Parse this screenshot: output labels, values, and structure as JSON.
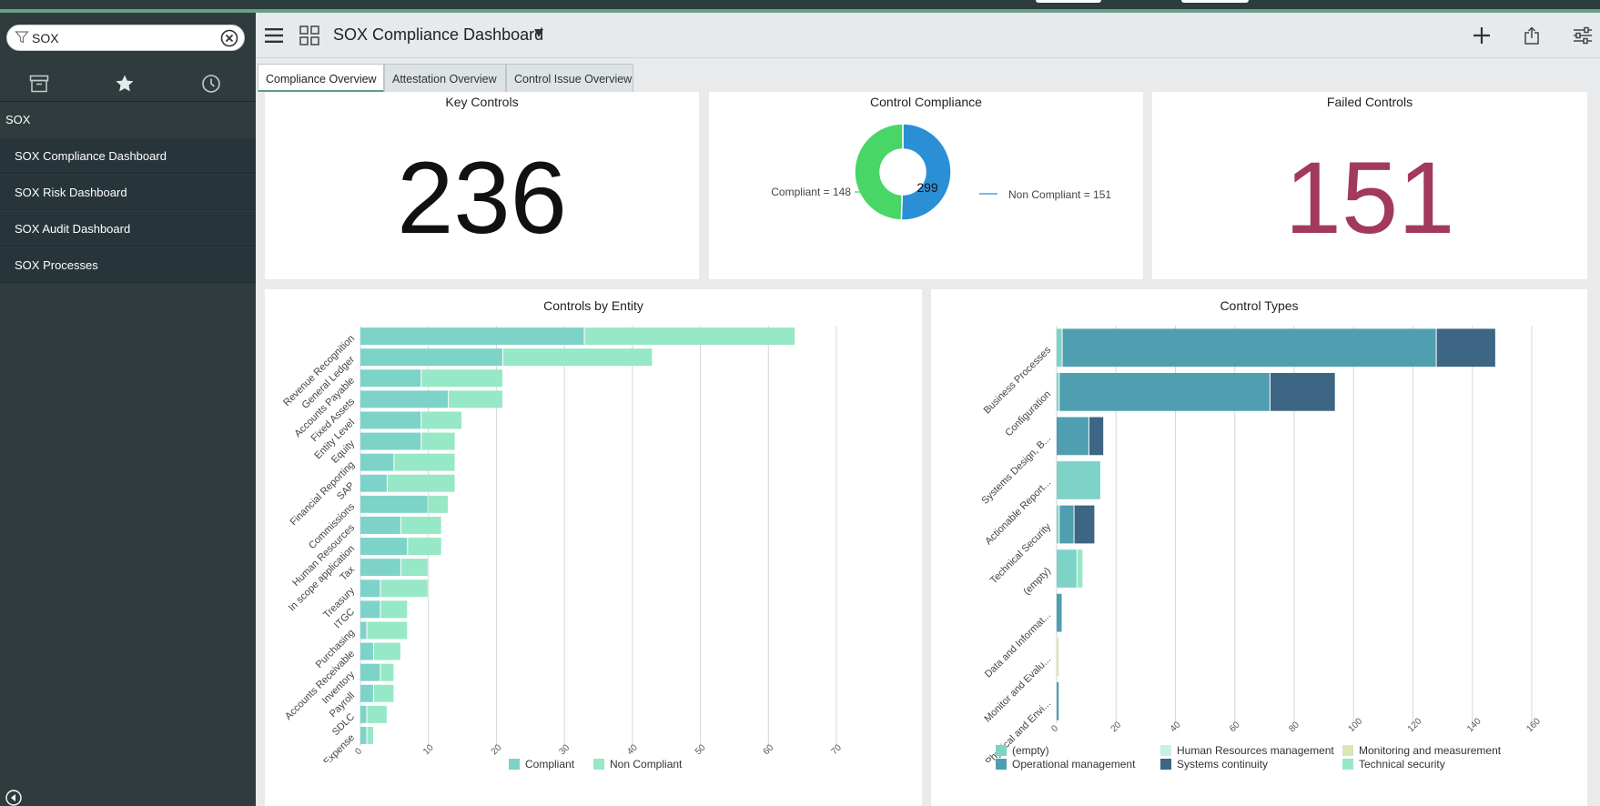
{
  "search": {
    "value": "SOX"
  },
  "sidebar": {
    "section": "SOX",
    "items": [
      {
        "label": "SOX Compliance Dashboard"
      },
      {
        "label": "SOX Risk Dashboard"
      },
      {
        "label": "SOX Audit Dashboard"
      },
      {
        "label": "SOX Processes"
      }
    ]
  },
  "header": {
    "title": "SOX Compliance Dashboard"
  },
  "tabs": [
    {
      "label": "Compliance Overview",
      "active": true
    },
    {
      "label": "Attestation Overview",
      "active": false
    },
    {
      "label": "Control Issue Overview",
      "active": false
    }
  ],
  "key_controls": {
    "title": "Key Controls",
    "value": "236"
  },
  "control_compliance": {
    "title": "Control Compliance",
    "total": "299",
    "compliant_label": "Compliant = 148",
    "non_compliant_label": "Non Compliant = 151",
    "compliant": 148,
    "non_compliant": 151,
    "colors": {
      "compliant": "#48d666",
      "non_compliant": "#2b8fd6"
    }
  },
  "failed_controls": {
    "title": "Failed Controls",
    "value": "151",
    "color": "#a23a5b"
  },
  "colors": {
    "compliant": "#7dd3c8",
    "non_compliant": "#96e8c6",
    "empty": "#7dd3c8",
    "hr_management": "#c9f1e3",
    "monitoring": "#d9e8b4",
    "operational": "#4f9fb1",
    "systems_continuity": "#3c6683",
    "technical_security": "#96e8c6"
  },
  "chart_data": [
    {
      "title": "Controls by Entity",
      "type": "bar",
      "orientation": "horizontal",
      "stacked": true,
      "categories": [
        "Revenue Recognition",
        "General Ledger",
        "Accounts Payable",
        "Fixed Assets",
        "Entity Level",
        "Equity",
        "Financial Reporting",
        "SAP",
        "Commissions",
        "Human Resources",
        "In scope application",
        "Tax",
        "Treasury",
        "ITGC",
        "Purchasing",
        "Accounts Receivable",
        "Inventory",
        "Payroll",
        "SDLC",
        "Travel and Expense"
      ],
      "series": [
        {
          "name": "Compliant",
          "values": [
            33,
            21,
            9,
            13,
            9,
            9,
            5,
            4,
            10,
            6,
            7,
            6,
            3,
            3,
            1,
            2,
            3,
            2,
            1,
            1
          ]
        },
        {
          "name": "Non Compliant",
          "values": [
            31,
            22,
            12,
            8,
            6,
            5,
            9,
            10,
            3,
            6,
            5,
            4,
            7,
            4,
            6,
            4,
            2,
            3,
            3,
            1
          ]
        }
      ],
      "xlim": [
        0,
        70
      ],
      "ticks": [
        "0",
        "10",
        "20",
        "30",
        "40",
        "50",
        "60",
        "70"
      ],
      "grid": true,
      "legend": "bottom"
    },
    {
      "title": "Control Types",
      "type": "bar",
      "orientation": "horizontal",
      "stacked": true,
      "categories": [
        "Business Processes",
        "Configuration",
        "Systems Design, B...",
        "Actionable Report...",
        "Technical Security",
        "(empty)",
        "Data and Informat...",
        "Monitor and Evalu...",
        "Physical and Envi..."
      ],
      "series": [
        {
          "name": "(empty)",
          "values": [
            2,
            1,
            0,
            15,
            1,
            7,
            0,
            0,
            0
          ]
        },
        {
          "name": "Human Resources management",
          "values": [
            0,
            0,
            0,
            0,
            0,
            0,
            0,
            0,
            0
          ]
        },
        {
          "name": "Monitoring and measurement",
          "values": [
            0,
            0,
            0,
            0,
            0,
            0,
            0,
            1,
            0
          ]
        },
        {
          "name": "Operational management",
          "values": [
            126,
            71,
            11,
            0,
            5,
            0,
            2,
            0,
            1
          ]
        },
        {
          "name": "Systems continuity",
          "values": [
            20,
            22,
            5,
            0,
            7,
            0,
            0,
            0,
            0
          ]
        },
        {
          "name": "Technical security",
          "values": [
            0,
            0,
            0,
            0,
            0,
            2,
            0,
            0,
            0
          ]
        }
      ],
      "xlim": [
        0,
        160
      ],
      "ticks": [
        "0",
        "20",
        "40",
        "60",
        "80",
        "100",
        "120",
        "140",
        "160"
      ],
      "grid": true,
      "legend": "bottom"
    }
  ]
}
